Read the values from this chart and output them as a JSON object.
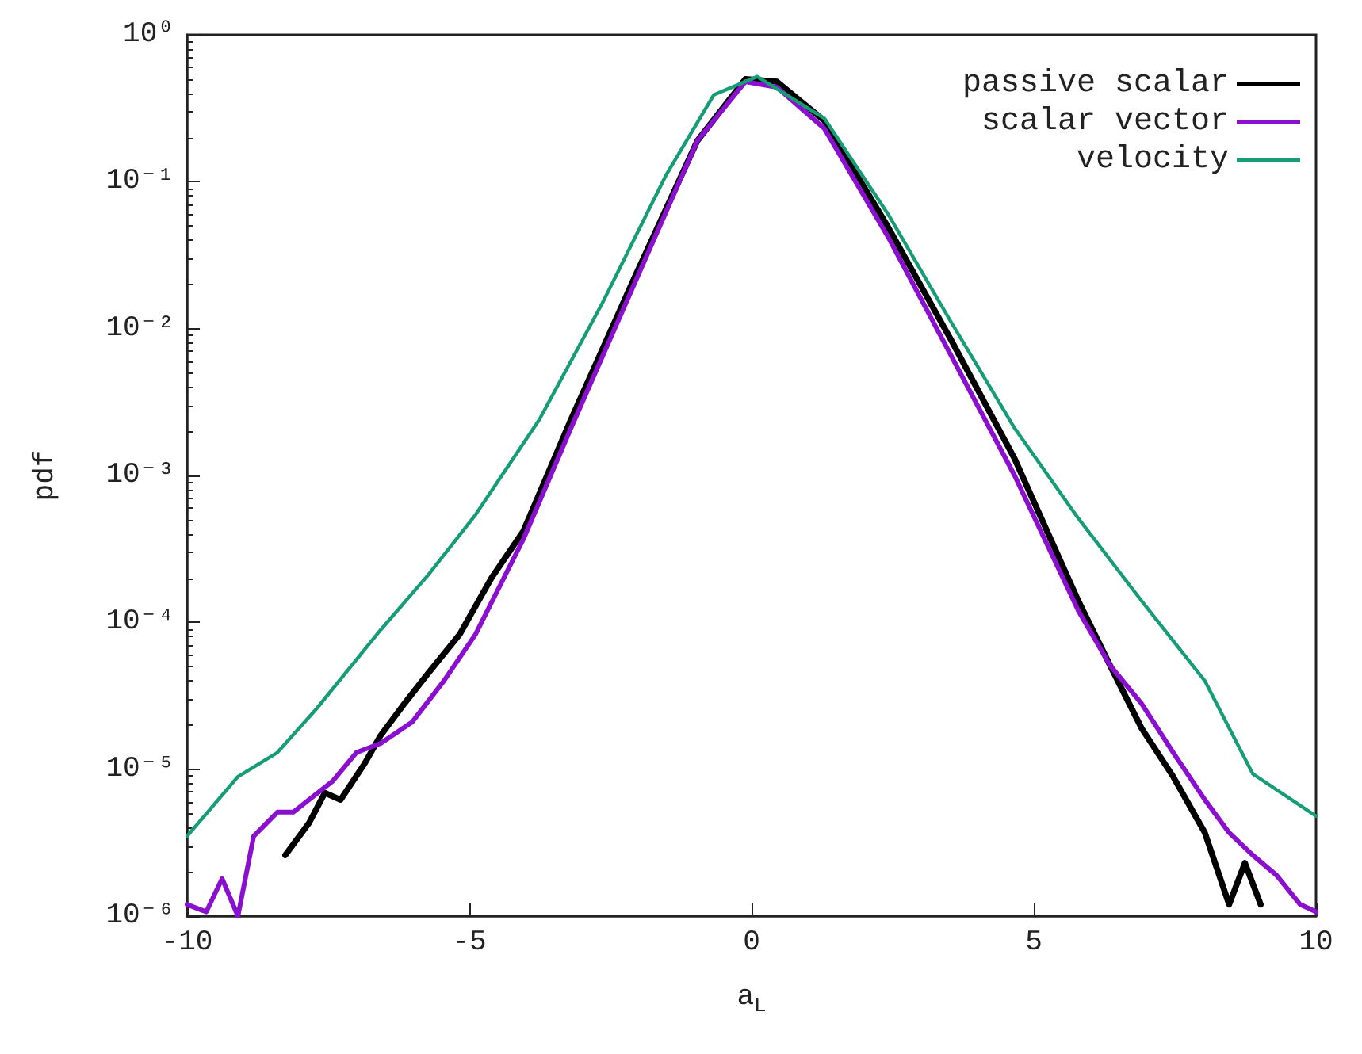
{
  "chart_data": {
    "type": "line",
    "xlabel": "a$_{L}$",
    "ylabel": "pdf",
    "log": "y",
    "grid": false,
    "legend": "top right",
    "marker": "none",
    "line_style": "solid",
    "xlim": [
      -10,
      10
    ],
    "xticks": [
      -10,
      -5,
      0,
      5,
      10
    ],
    "ylim": [
      1e-06,
      1
    ],
    "yticks": [
      {
        "value": 1e-06,
        "label": "10⁻⁶"
      },
      {
        "value": 1e-05,
        "label": "10⁻⁵"
      },
      {
        "value": 0.0001,
        "label": "10⁻⁴"
      },
      {
        "value": 0.001,
        "label": "10⁻³"
      },
      {
        "value": 0.01,
        "label": "10⁻²"
      },
      {
        "value": 0.1,
        "label": "10⁻¹"
      },
      {
        "value": 1,
        "label": "10⁰"
      }
    ],
    "series": [
      {
        "name": "passive scalar",
        "color": "#000000",
        "x": [
          -8.26,
          -7.84,
          -7.56,
          -7.28,
          -6.85,
          -6.57,
          -6.15,
          -5.73,
          -5.17,
          -4.61,
          -4.04,
          -3.2,
          -2.08,
          -0.96,
          -0.11,
          0.45,
          1.29,
          2.42,
          3.54,
          4.66,
          5.79,
          6.35,
          6.91,
          7.47,
          8.03,
          8.46,
          8.74,
          9.02
        ],
        "values": [
          2.6e-06,
          4.3e-06,
          6.9e-06,
          6.2e-06,
          1.1e-05,
          1.7e-05,
          2.8e-05,
          4.5e-05,
          8.3e-05,
          0.0002,
          0.00042,
          0.0024,
          0.022,
          0.19,
          0.5,
          0.48,
          0.26,
          0.049,
          0.0083,
          0.0013,
          0.00014,
          5.1e-05,
          1.9e-05,
          8.9e-06,
          3.7e-06,
          1.2e-06,
          2.3e-06,
          1.2e-06
        ]
      },
      {
        "name": "scalar vector",
        "color": "#8b0fcf",
        "x": [
          -10,
          -9.66,
          -9.38,
          -9.1,
          -8.82,
          -8.4,
          -8.12,
          -7.84,
          -7.42,
          -7.0,
          -6.57,
          -6.01,
          -5.45,
          -4.89,
          -4.04,
          -3.2,
          -2.08,
          -0.96,
          -0.11,
          0.45,
          1.29,
          2.42,
          3.54,
          4.66,
          5.79,
          6.35,
          6.91,
          7.47,
          8.03,
          8.46,
          8.88,
          9.3,
          9.72,
          10
        ],
        "values": [
          1.2e-06,
          1.07e-06,
          1.8e-06,
          1e-06,
          3.5e-06,
          5.1e-06,
          5.1e-06,
          6.2e-06,
          8.3e-06,
          1.3e-05,
          1.5e-05,
          2.1e-05,
          4e-05,
          8.3e-05,
          0.00037,
          0.0021,
          0.02,
          0.19,
          0.48,
          0.44,
          0.23,
          0.042,
          0.0065,
          0.001,
          0.00012,
          5.1e-05,
          2.8e-05,
          1.3e-05,
          6.2e-06,
          3.7e-06,
          2.6e-06,
          1.9e-06,
          1.2e-06,
          1.07e-06
        ]
      },
      {
        "name": "velocity",
        "color": "#169c77",
        "x": [
          -10,
          -9.1,
          -8.4,
          -7.7,
          -6.57,
          -5.73,
          -4.89,
          -3.76,
          -2.64,
          -1.52,
          -0.67,
          0.1,
          1.29,
          2.42,
          3.54,
          4.66,
          5.79,
          6.91,
          8.03,
          8.88,
          10
        ],
        "values": [
          3.5e-06,
          8.9e-06,
          1.3e-05,
          2.6e-05,
          8.9e-05,
          0.00021,
          0.00054,
          0.0024,
          0.015,
          0.11,
          0.39,
          0.52,
          0.27,
          0.06,
          0.011,
          0.0021,
          0.00051,
          0.00014,
          4e-05,
          9.3e-06,
          4.8e-06
        ]
      }
    ]
  }
}
